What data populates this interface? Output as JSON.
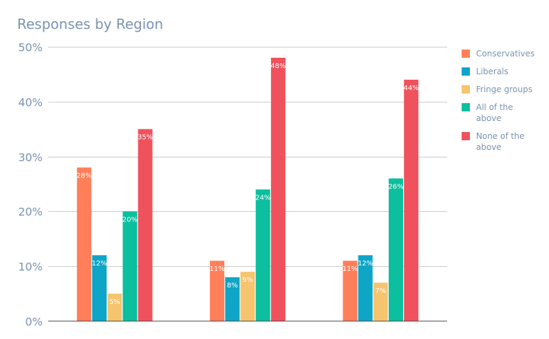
{
  "chart_data": {
    "type": "bar",
    "title": "Responses by Region",
    "xlabel": "",
    "ylabel": "",
    "categories": [
      "",
      "",
      ""
    ],
    "series": [
      {
        "name": "Conservatives",
        "color": "#ff7f5a",
        "values": [
          28,
          11,
          11
        ],
        "labels": [
          "28%",
          "11%",
          "11%"
        ]
      },
      {
        "name": "Liberals",
        "color": "#0ea5c6",
        "values": [
          12,
          8,
          12
        ],
        "labels": [
          "12%",
          "8%",
          "12%"
        ]
      },
      {
        "name": "Fringe groups",
        "color": "#f6c46e",
        "values": [
          5,
          9,
          7
        ],
        "labels": [
          "5%",
          "9%",
          "7%"
        ]
      },
      {
        "name": "All of the above",
        "color": "#0cbf9e",
        "values": [
          20,
          24,
          26
        ],
        "labels": [
          "20%",
          "24%",
          "26%"
        ]
      },
      {
        "name": "None of the above",
        "color": "#f0525d",
        "values": [
          35,
          48,
          44
        ],
        "labels": [
          "35%",
          "48%",
          "44%"
        ]
      }
    ],
    "yticks": [
      "0%",
      "10%",
      "20%",
      "30%",
      "40%",
      "50%"
    ],
    "ylim": [
      0,
      50
    ],
    "grid": true,
    "legend": "right"
  }
}
